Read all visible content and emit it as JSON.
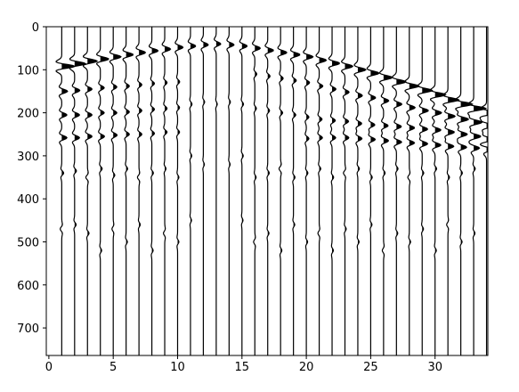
{
  "chart_data": {
    "type": "wiggle",
    "xlim": [
      -0.2,
      34.1
    ],
    "ylim": [
      764,
      0
    ],
    "xticks": [
      0,
      5,
      10,
      15,
      20,
      25,
      30
    ],
    "yticks": [
      0,
      100,
      200,
      300,
      400,
      500,
      600,
      700
    ],
    "color": "#000000",
    "traces": [
      {
        "x": 1,
        "events": [
          [
            92,
            1.0
          ],
          [
            150,
            0.45
          ],
          [
            205,
            0.4
          ],
          [
            258,
            0.4
          ],
          [
            340,
            0.15
          ],
          [
            470,
            -0.12
          ]
        ]
      },
      {
        "x": 2,
        "events": [
          [
            86,
            0.85
          ],
          [
            148,
            0.4
          ],
          [
            205,
            0.38
          ],
          [
            258,
            0.38
          ],
          [
            335,
            0.14
          ],
          [
            460,
            0.12
          ]
        ]
      },
      {
        "x": 3,
        "events": [
          [
            80,
            0.75
          ],
          [
            145,
            0.35
          ],
          [
            205,
            0.35
          ],
          [
            255,
            0.35
          ],
          [
            350,
            -0.13
          ],
          [
            480,
            0.12
          ]
        ]
      },
      {
        "x": 4,
        "events": [
          [
            75,
            0.65
          ],
          [
            142,
            0.3
          ],
          [
            200,
            0.3
          ],
          [
            255,
            0.32
          ],
          [
            330,
            0.14
          ],
          [
            520,
            0.1
          ]
        ]
      },
      {
        "x": 5,
        "events": [
          [
            70,
            0.6
          ],
          [
            140,
            0.28
          ],
          [
            200,
            0.28
          ],
          [
            252,
            0.3
          ],
          [
            345,
            0.12
          ],
          [
            470,
            -0.1
          ]
        ]
      },
      {
        "x": 6,
        "events": [
          [
            65,
            0.55
          ],
          [
            138,
            0.25
          ],
          [
            198,
            0.25
          ],
          [
            250,
            0.25
          ],
          [
            330,
            0.12
          ],
          [
            500,
            0.1
          ]
        ]
      },
      {
        "x": 7,
        "events": [
          [
            60,
            0.5
          ],
          [
            135,
            0.22
          ],
          [
            195,
            0.22
          ],
          [
            250,
            0.22
          ],
          [
            350,
            -0.12
          ],
          [
            460,
            0.1
          ]
        ]
      },
      {
        "x": 8,
        "events": [
          [
            56,
            0.48
          ],
          [
            132,
            0.2
          ],
          [
            192,
            0.2
          ],
          [
            248,
            0.2
          ],
          [
            340,
            0.12
          ],
          [
            520,
            0.1
          ]
        ]
      },
      {
        "x": 9,
        "events": [
          [
            52,
            0.45
          ],
          [
            130,
            0.18
          ],
          [
            190,
            0.18
          ],
          [
            245,
            0.18
          ],
          [
            330,
            0.1
          ],
          [
            480,
            -0.1
          ]
        ]
      },
      {
        "x": 10,
        "events": [
          [
            48,
            0.42
          ],
          [
            128,
            0.16
          ],
          [
            188,
            0.15
          ],
          [
            245,
            0.15
          ],
          [
            350,
            0.1
          ],
          [
            500,
            0.1
          ]
        ]
      },
      {
        "x": 11,
        "events": [
          [
            45,
            0.4
          ],
          [
            180,
            0.12
          ],
          [
            300,
            0.1
          ],
          [
            450,
            0.08
          ]
        ]
      },
      {
        "x": 12,
        "events": [
          [
            42,
            0.38
          ],
          [
            175,
            0.1
          ],
          [
            320,
            0.08
          ]
        ]
      },
      {
        "x": 13,
        "events": [
          [
            40,
            0.35
          ],
          [
            180,
            0.08
          ]
        ]
      },
      {
        "x": 14,
        "events": [
          [
            42,
            0.38
          ],
          [
            175,
            0.1
          ],
          [
            320,
            0.08
          ]
        ]
      },
      {
        "x": 15,
        "events": [
          [
            45,
            0.4
          ],
          [
            180,
            0.12
          ],
          [
            300,
            0.1
          ],
          [
            450,
            0.08
          ]
        ]
      },
      {
        "x": 16,
        "events": [
          [
            50,
            0.42
          ],
          [
            110,
            0.15
          ],
          [
            190,
            0.12
          ],
          [
            350,
            0.1
          ],
          [
            500,
            -0.1
          ]
        ]
      },
      {
        "x": 17,
        "events": [
          [
            55,
            0.45
          ],
          [
            115,
            0.18
          ],
          [
            195,
            0.14
          ],
          [
            340,
            0.12
          ],
          [
            480,
            0.1
          ]
        ]
      },
      {
        "x": 18,
        "events": [
          [
            60,
            0.48
          ],
          [
            120,
            0.2
          ],
          [
            200,
            0.16
          ],
          [
            330,
            -0.12
          ],
          [
            520,
            0.1
          ]
        ]
      },
      {
        "x": 19,
        "events": [
          [
            65,
            0.5
          ],
          [
            125,
            0.22
          ],
          [
            205,
            0.18
          ],
          [
            350,
            0.12
          ],
          [
            460,
            0.1
          ]
        ]
      },
      {
        "x": 20,
        "events": [
          [
            70,
            0.52
          ],
          [
            130,
            0.25
          ],
          [
            210,
            0.2
          ],
          [
            260,
            0.2
          ],
          [
            340,
            0.12
          ],
          [
            500,
            0.1
          ]
        ]
      },
      {
        "x": 21,
        "events": [
          [
            78,
            0.55
          ],
          [
            138,
            0.28
          ],
          [
            215,
            0.22
          ],
          [
            258,
            0.25
          ],
          [
            330,
            0.12
          ],
          [
            480,
            -0.1
          ]
        ]
      },
      {
        "x": 22,
        "events": [
          [
            85,
            0.58
          ],
          [
            145,
            0.3
          ],
          [
            218,
            0.25
          ],
          [
            258,
            0.28
          ],
          [
            350,
            0.12
          ],
          [
            520,
            0.1
          ]
        ]
      },
      {
        "x": 23,
        "events": [
          [
            92,
            0.6
          ],
          [
            152,
            0.32
          ],
          [
            220,
            0.28
          ],
          [
            258,
            0.3
          ],
          [
            340,
            -0.12
          ],
          [
            470,
            0.1
          ]
        ]
      },
      {
        "x": 24,
        "events": [
          [
            100,
            0.62
          ],
          [
            160,
            0.35
          ],
          [
            225,
            0.3
          ],
          [
            260,
            0.32
          ],
          [
            330,
            0.12
          ],
          [
            500,
            0.1
          ]
        ]
      },
      {
        "x": 25,
        "events": [
          [
            108,
            0.65
          ],
          [
            165,
            0.38
          ],
          [
            228,
            0.32
          ],
          [
            262,
            0.35
          ],
          [
            350,
            0.12
          ],
          [
            460,
            0.1
          ]
        ]
      },
      {
        "x": 26,
        "events": [
          [
            118,
            0.68
          ],
          [
            172,
            0.4
          ],
          [
            230,
            0.35
          ],
          [
            265,
            0.38
          ],
          [
            340,
            0.12
          ],
          [
            520,
            -0.1
          ]
        ]
      },
      {
        "x": 27,
        "events": [
          [
            128,
            0.72
          ],
          [
            180,
            0.42
          ],
          [
            232,
            0.38
          ],
          [
            268,
            0.4
          ],
          [
            330,
            0.12
          ],
          [
            480,
            0.1
          ]
        ]
      },
      {
        "x": 28,
        "events": [
          [
            138,
            0.75
          ],
          [
            188,
            0.45
          ],
          [
            235,
            0.4
          ],
          [
            270,
            0.4
          ],
          [
            350,
            -0.12
          ],
          [
            500,
            0.1
          ]
        ]
      },
      {
        "x": 29,
        "events": [
          [
            148,
            0.78
          ],
          [
            195,
            0.48
          ],
          [
            238,
            0.42
          ],
          [
            272,
            0.42
          ],
          [
            340,
            0.12
          ],
          [
            470,
            0.1
          ]
        ]
      },
      {
        "x": 30,
        "events": [
          [
            158,
            0.82
          ],
          [
            200,
            0.5
          ],
          [
            240,
            0.45
          ],
          [
            275,
            0.45
          ],
          [
            330,
            0.12
          ],
          [
            520,
            0.1
          ]
        ]
      },
      {
        "x": 31,
        "events": [
          [
            170,
            0.85
          ],
          [
            208,
            0.55
          ],
          [
            245,
            0.5
          ],
          [
            278,
            0.45
          ],
          [
            350,
            0.12
          ],
          [
            460,
            -0.1
          ]
        ]
      },
      {
        "x": 32,
        "events": [
          [
            180,
            0.9
          ],
          [
            215,
            0.6
          ],
          [
            250,
            0.5
          ],
          [
            280,
            0.45
          ],
          [
            340,
            0.12
          ],
          [
            500,
            0.1
          ]
        ]
      },
      {
        "x": 33,
        "events": [
          [
            190,
            0.95
          ],
          [
            222,
            0.65
          ],
          [
            255,
            0.55
          ],
          [
            282,
            0.45
          ],
          [
            330,
            0.12
          ],
          [
            480,
            0.1
          ]
        ]
      },
      {
        "x": 34,
        "events": [
          [
            200,
            1.0
          ],
          [
            230,
            0.7
          ],
          [
            262,
            0.6
          ],
          [
            285,
            0.5
          ]
        ]
      }
    ]
  }
}
